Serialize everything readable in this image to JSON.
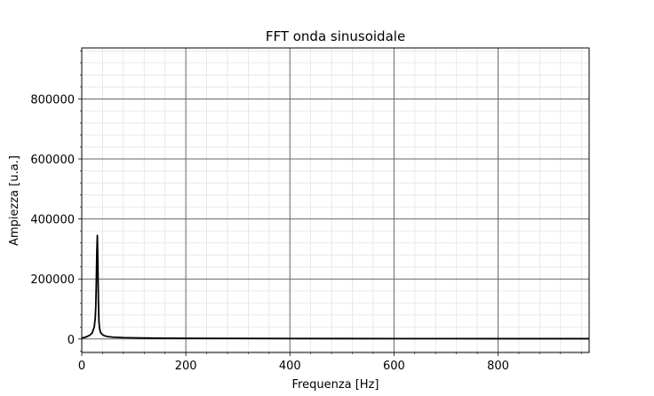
{
  "chart_data": {
    "type": "line",
    "title": "FFT onda sinusoidale",
    "xlabel": "Frequenza [Hz]",
    "ylabel": "Ampiezza [u.a.]",
    "xlim": [
      0,
      975
    ],
    "ylim": [
      -45000,
      970000
    ],
    "x_ticks": [
      0,
      200,
      400,
      600,
      800
    ],
    "x_tick_labels": [
      "0",
      "200",
      "400",
      "600",
      "800"
    ],
    "y_ticks": [
      0,
      200000,
      400000,
      600000,
      800000
    ],
    "y_tick_labels": [
      "0",
      "200000",
      "400000",
      "600000",
      "800000"
    ],
    "grid": "major and minor",
    "legend": "none",
    "series": [
      {
        "color": "#000000",
        "x": [
          0,
          5,
          10,
          15,
          20,
          24,
          26,
          27,
          28,
          29,
          30,
          31,
          32,
          33,
          34,
          36,
          40,
          45,
          50,
          60,
          80,
          100,
          120,
          150,
          200,
          300,
          400,
          500,
          600,
          700,
          800,
          900,
          975
        ],
        "y": [
          3000,
          5000,
          8000,
          12000,
          20000,
          40000,
          70000,
          110000,
          190000,
          290000,
          345000,
          250000,
          130000,
          60000,
          38000,
          22000,
          14000,
          10000,
          8000,
          6000,
          4500,
          3800,
          3300,
          2800,
          2400,
          1900,
          1600,
          1400,
          1300,
          1200,
          1100,
          1050,
          1000
        ]
      }
    ]
  }
}
